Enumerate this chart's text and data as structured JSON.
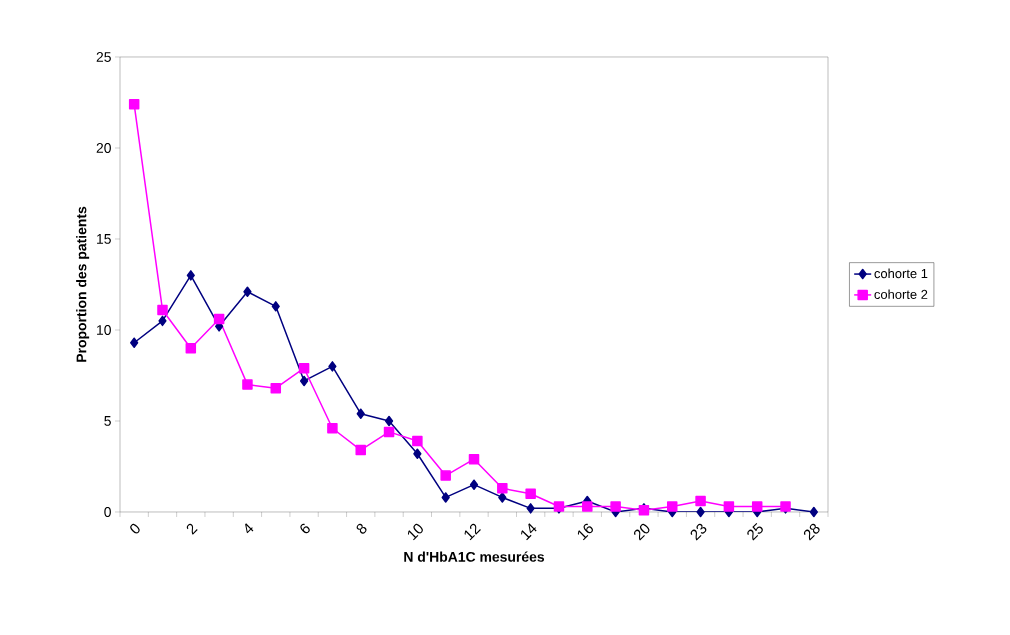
{
  "chart_data": {
    "type": "line",
    "xlabel": "N d'HbA1C mesurées",
    "ylabel": "Proportion des patients",
    "categories": [
      "0",
      null,
      "2",
      null,
      "4",
      null,
      "6",
      null,
      "8",
      null,
      "10",
      null,
      "12",
      null,
      "14",
      null,
      "16",
      null,
      "20",
      null,
      "23",
      null,
      "25",
      null,
      "28"
    ],
    "series": [
      {
        "name": "cohorte 1",
        "color": "#000080",
        "marker": "diamond",
        "values": [
          9.3,
          10.5,
          13.0,
          10.2,
          12.1,
          11.3,
          7.2,
          8.0,
          5.4,
          5.0,
          3.2,
          0.8,
          1.5,
          0.8,
          0.2,
          0.2,
          0.6,
          0,
          0.2,
          0,
          0,
          0,
          0,
          0.2,
          0
        ]
      },
      {
        "name": "cohorte 2",
        "color": "#ff00ff",
        "marker": "square",
        "values": [
          22.4,
          11.1,
          9.0,
          10.6,
          7.0,
          6.8,
          7.9,
          4.6,
          3.4,
          4.4,
          3.9,
          2.0,
          2.9,
          1.3,
          1.0,
          0.3,
          0.3,
          0.3,
          0.1,
          0.3,
          0.6,
          0.3,
          0.3,
          0.3,
          null
        ]
      }
    ],
    "ylim": [
      0,
      25
    ],
    "yticks": [
      0,
      5,
      10,
      15,
      20,
      25
    ],
    "grid": false,
    "legend": "right",
    "line_style": "solid"
  }
}
